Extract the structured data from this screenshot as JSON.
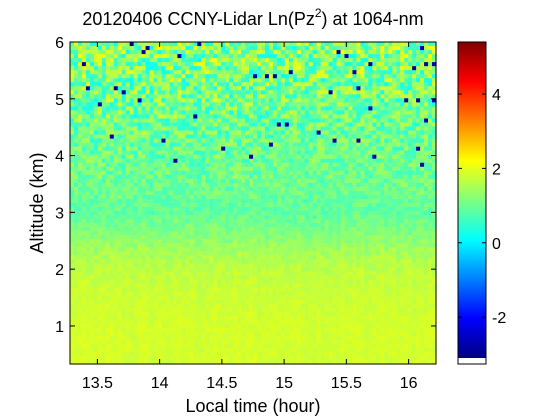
{
  "chart_data": {
    "type": "heatmap",
    "title": {
      "prefix": "20120406 CCNY-Lidar Ln(Pz",
      "superscript": "2",
      "suffix": ") at 1064-nm"
    },
    "xlabel": "Local time (hour)",
    "ylabel": "Altitude (km)",
    "xlim": [
      13.28,
      16.22
    ],
    "ylim": [
      0.33,
      6.0
    ],
    "x_ticks": [
      13.5,
      14,
      14.5,
      15,
      15.5,
      16
    ],
    "x_tick_labels": [
      "13.5",
      "14",
      "14.5",
      "15",
      "15.5",
      "16"
    ],
    "y_ticks": [
      1,
      2,
      3,
      4,
      5,
      6
    ],
    "y_tick_labels": [
      "1",
      "2",
      "3",
      "4",
      "5",
      "6"
    ],
    "colorbar": {
      "colormap": "jet",
      "clim": [
        -3.1,
        5.4
      ],
      "ticks": [
        -2,
        0,
        2,
        4
      ],
      "tick_labels": [
        "-2",
        "0",
        "2",
        "4"
      ]
    },
    "field_profile": {
      "altitude_km": [
        0.33,
        1.0,
        1.7,
        1.9,
        2.2,
        2.6,
        3.0,
        3.4,
        4.0,
        4.6,
        5.2,
        5.7,
        6.0
      ],
      "value": [
        1.85,
        1.85,
        1.75,
        1.7,
        1.55,
        1.2,
        0.9,
        1.0,
        1.0,
        1.0,
        1.05,
        1.15,
        1.2
      ],
      "noise_amplitude": [
        0.1,
        0.1,
        0.12,
        0.15,
        0.18,
        0.2,
        0.25,
        0.35,
        0.5,
        0.7,
        0.9,
        1.0,
        1.0
      ]
    }
  }
}
